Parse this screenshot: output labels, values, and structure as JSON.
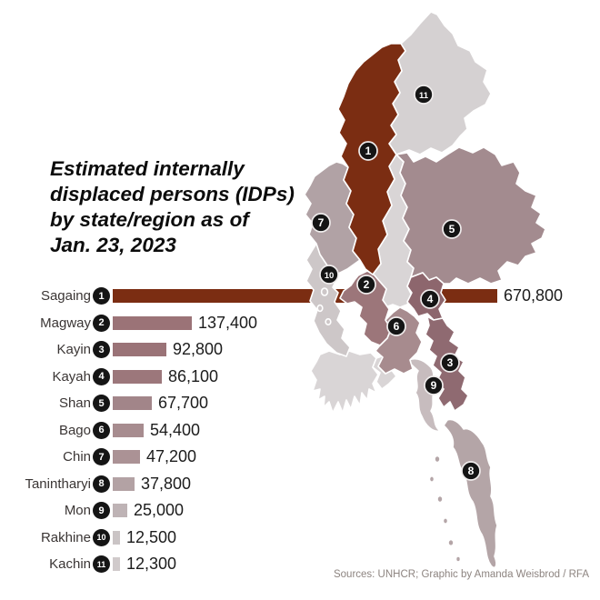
{
  "title": {
    "text": "Estimated internally\ndisplaced persons (IDPs)\nby state/region as of\nJan. 23, 2023"
  },
  "source": "Sources: UNHCR; Graphic by Amanda Weisbrod / RFA",
  "chart_data": {
    "type": "bar",
    "orientation": "horizontal",
    "title": "Estimated internally displaced persons (IDPs) by state/region as of Jan. 23, 2023",
    "xlabel": "",
    "ylabel": "",
    "unit": "persons",
    "xlim": [
      0,
      670800
    ],
    "grid": false,
    "categories": [
      "Sagaing",
      "Magway",
      "Kayin",
      "Kayah",
      "Shan",
      "Bago",
      "Chin",
      "Tanintharyi",
      "Mon",
      "Rakhine",
      "Kachin"
    ],
    "values": [
      670800,
      137400,
      92800,
      86100,
      67700,
      54400,
      47200,
      37800,
      25000,
      12500,
      12300
    ],
    "rows": [
      {
        "rank": "1",
        "region": "Sagaing",
        "value": 670800,
        "value_label": "670,800",
        "color": "#7b2d12"
      },
      {
        "rank": "2",
        "region": "Magway",
        "value": 137400,
        "value_label": "137,400",
        "color": "#9b7377"
      },
      {
        "rank": "3",
        "region": "Kayin",
        "value": 92800,
        "value_label": "92,800",
        "color": "#9a7377"
      },
      {
        "rank": "4",
        "region": "Kayah",
        "value": 86100,
        "value_label": "86,100",
        "color": "#9c777b"
      },
      {
        "rank": "5",
        "region": "Shan",
        "value": 67700,
        "value_label": "67,700",
        "color": "#a28589"
      },
      {
        "rank": "6",
        "region": "Bago",
        "value": 54400,
        "value_label": "54,400",
        "color": "#a78c8f"
      },
      {
        "rank": "7",
        "region": "Chin",
        "value": 47200,
        "value_label": "47,200",
        "color": "#ab9295"
      },
      {
        "rank": "8",
        "region": "Tanintharyi",
        "value": 37800,
        "value_label": "37,800",
        "color": "#b3a2a4"
      },
      {
        "rank": "9",
        "region": "Mon",
        "value": 25000,
        "value_label": "25,000",
        "color": "#beb3b5"
      },
      {
        "rank": "10",
        "region": "Rakhine",
        "value": 12500,
        "value_label": "12,500",
        "color": "#cac4c5"
      },
      {
        "rank": "11",
        "region": "Kachin",
        "value": 12300,
        "value_label": "12,300",
        "color": "#d0cacb"
      }
    ]
  },
  "map": {
    "regions": {
      "sagaing": "#7b2d12",
      "magway": "#9c767a",
      "kayin": "#8f6a71",
      "kayah": "#8d666d",
      "shan": "#a38b8f",
      "bago": "#a78b8e",
      "chin": "#b1a2a5",
      "tanintharyi": "#b4a5a7",
      "mon": "#c7bcbe",
      "rakhine": "#cdc7c8",
      "kachin": "#d5d1d2",
      "no_data": "#d9d5d6"
    },
    "badge_color": "#151515",
    "badge_text_color": "#ffffff"
  }
}
